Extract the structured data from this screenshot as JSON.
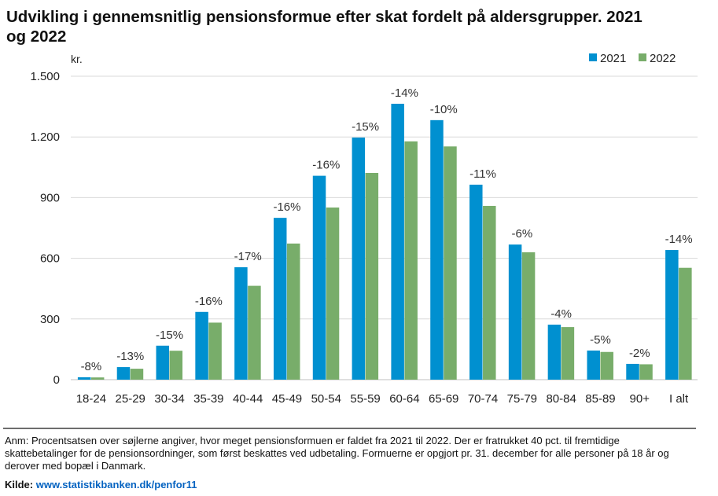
{
  "chart_data": {
    "type": "bar",
    "title": "Udvikling i gennemsnitlig pensionsformue efter skat fordelt på aldersgrupper. 2021 og 2022",
    "xlabel": "",
    "ylabel": "kr.",
    "ylim": [
      0,
      1500
    ],
    "yticks": [
      0,
      300,
      600,
      900,
      1200,
      1500
    ],
    "ytick_labels": [
      "0",
      "300",
      "600",
      "900",
      "1.200",
      "1.500"
    ],
    "grid": true,
    "legend": "top-right",
    "categories": [
      "18-24",
      "25-29",
      "30-34",
      "35-39",
      "40-44",
      "45-49",
      "50-54",
      "55-59",
      "60-64",
      "65-69",
      "70-74",
      "75-79",
      "80-84",
      "85-89",
      "90+",
      "I alt"
    ],
    "series": [
      {
        "name": "2021",
        "color": "#0090d0",
        "values": [
          12,
          62,
          168,
          335,
          556,
          800,
          1008,
          1197,
          1364,
          1283,
          964,
          668,
          272,
          144,
          78,
          641
        ]
      },
      {
        "name": "2022",
        "color": "#78ad6a",
        "values": [
          11,
          54,
          143,
          282,
          464,
          673,
          851,
          1022,
          1178,
          1153,
          859,
          630,
          260,
          137,
          76,
          553
        ]
      }
    ],
    "annotations": [
      "-8%",
      "-13%",
      "-15%",
      "-16%",
      "-17%",
      "-16%",
      "-16%",
      "-15%",
      "-14%",
      "-10%",
      "-11%",
      "-6%",
      "-4%",
      "-5%",
      "-2%",
      "-14%"
    ]
  },
  "note": "Anm: Procentsatsen over søjlerne angiver, hvor meget pensionsformuen er faldet fra 2021 til 2022. Der er fratrukket 40 pct. til fremtidige skattebetalinger for de pensionsordninger, som først beskattes ved udbetaling. Formuerne er opgjort pr. 31. december for alle personer på 18 år og derover med bopæl i Danmark.",
  "source": {
    "label": "Kilde:",
    "link": "www.statistikbanken.dk/penfor11"
  }
}
